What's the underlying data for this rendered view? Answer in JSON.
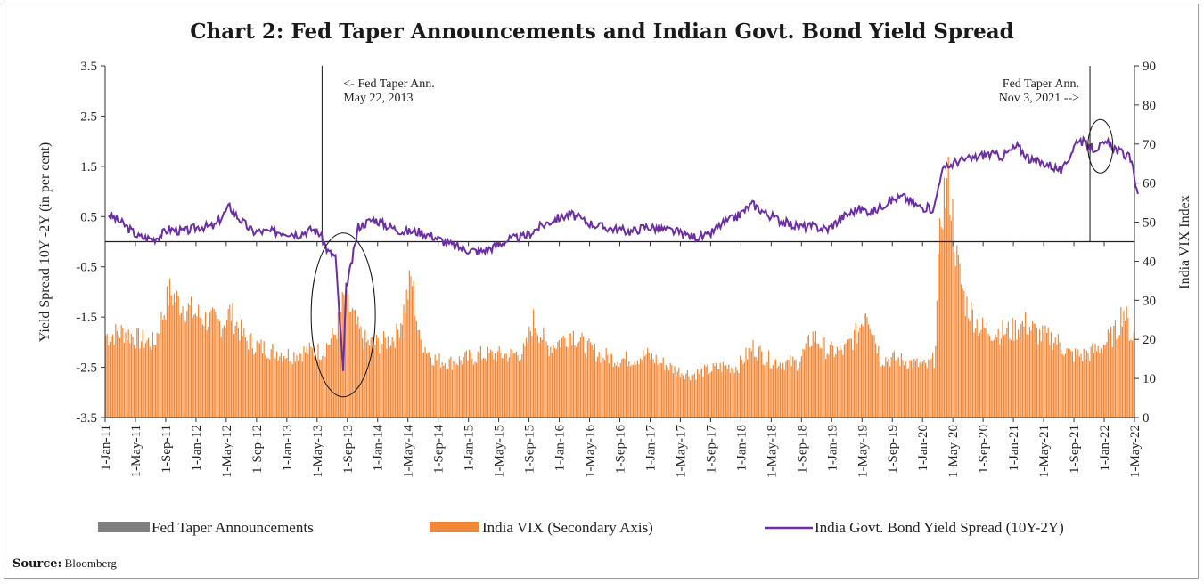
{
  "title": "Chart 2: Fed Taper Announcements and Indian Govt. Bond Yield Spread",
  "source_label": "Source:",
  "source_value": "Bloomberg",
  "colors": {
    "vix": "#f0883a",
    "spread": "#6b2fa0",
    "taper": "#7f7f7f"
  },
  "chart_data": {
    "type": "bar+line",
    "ylabel": "Yield Spread 10Y -2Y (in per cent)",
    "y2label": "India VIX Index",
    "ylim": [
      -3.5,
      3.5
    ],
    "y2lim": [
      0,
      90
    ],
    "yticks": [
      "3.5",
      "2.5",
      "1.5",
      "0.5",
      "-0.5",
      "-1.5",
      "-2.5",
      "-3.5"
    ],
    "y2ticks": [
      "90",
      "80",
      "70",
      "60",
      "50",
      "40",
      "30",
      "20",
      "10",
      "0"
    ],
    "x_tick_labels": [
      "1-Jan-11",
      "1-May-11",
      "1-Sep-11",
      "1-Jan-12",
      "1-May-12",
      "1-Sep-12",
      "1-Jan-13",
      "1-May-13",
      "1-Sep-13",
      "1-Jan-14",
      "1-May-14",
      "1-Sep-14",
      "1-Jan-15",
      "1-May-15",
      "1-Sep-15",
      "1-Jan-16",
      "1-May-16",
      "1-Sep-16",
      "1-Jan-17",
      "1-May-17",
      "1-Sep-17",
      "1-Jan-18",
      "1-May-18",
      "1-Sep-18",
      "1-Jan-19",
      "1-May-19",
      "1-Sep-19",
      "1-Jan-20",
      "1-May-20",
      "1-Sep-20",
      "1-Jan-21",
      "1-May-21",
      "1-Sep-21",
      "1-Jan-22",
      "1-May-22"
    ],
    "series": [
      {
        "name": "Fed Taper Announcements",
        "type": "bar",
        "dates": [
          "2013-05-22",
          "2021-11-03"
        ]
      },
      {
        "name": "India VIX (Secondary Axis)",
        "type": "bar",
        "axis": "secondary",
        "x": [
          "2011-01",
          "2011-03",
          "2011-05",
          "2011-07",
          "2011-09",
          "2011-10",
          "2011-12",
          "2012-02",
          "2012-04",
          "2012-05",
          "2012-07",
          "2012-09",
          "2012-11",
          "2013-01",
          "2013-03",
          "2013-05",
          "2013-06",
          "2013-07",
          "2013-08",
          "2013-09",
          "2013-10",
          "2013-11",
          "2014-01",
          "2014-03",
          "2014-04",
          "2014-05",
          "2014-06",
          "2014-08",
          "2014-10",
          "2014-12",
          "2015-02",
          "2015-04",
          "2015-06",
          "2015-08",
          "2015-09",
          "2015-11",
          "2016-01",
          "2016-02",
          "2016-04",
          "2016-06",
          "2016-08",
          "2016-10",
          "2016-12",
          "2017-02",
          "2017-04",
          "2017-06",
          "2017-08",
          "2017-10",
          "2017-12",
          "2018-02",
          "2018-04",
          "2018-06",
          "2018-08",
          "2018-10",
          "2018-12",
          "2019-02",
          "2019-04",
          "2019-05",
          "2019-07",
          "2019-09",
          "2019-11",
          "2020-01",
          "2020-02",
          "2020-03",
          "2020-04",
          "2020-05",
          "2020-06",
          "2020-08",
          "2020-10",
          "2020-12",
          "2021-02",
          "2021-04",
          "2021-06",
          "2021-08",
          "2021-10",
          "2021-12",
          "2022-02",
          "2022-03",
          "2022-04",
          "2022-05"
        ],
        "values": [
          21,
          22,
          20,
          19,
          32,
          30,
          27,
          25,
          24,
          27,
          20,
          18,
          17,
          16,
          17,
          17,
          19,
          22,
          30,
          27,
          22,
          19,
          19,
          21,
          28,
          36,
          20,
          15,
          14,
          15,
          16,
          16,
          16,
          17,
          25,
          18,
          20,
          22,
          18,
          16,
          15,
          15,
          16,
          14,
          12,
          11,
          12,
          13,
          13,
          18,
          15,
          14,
          14,
          21,
          17,
          17,
          22,
          29,
          15,
          15,
          14,
          13,
          15,
          55,
          60,
          40,
          30,
          23,
          22,
          22,
          24,
          21,
          20,
          16,
          16,
          18,
          22,
          28,
          21,
          21
        ]
      },
      {
        "name": "India Govt. Bond Yield Spread (10Y-2Y)",
        "type": "line",
        "axis": "primary",
        "x": [
          "2011-01",
          "2011-03",
          "2011-05",
          "2011-07",
          "2011-09",
          "2011-11",
          "2012-01",
          "2012-03",
          "2012-05",
          "2012-06",
          "2012-08",
          "2012-10",
          "2012-12",
          "2013-02",
          "2013-04",
          "2013-05",
          "2013-06",
          "2013-07",
          "2013-07b",
          "2013-08",
          "2013-08b",
          "2013-09",
          "2013-10",
          "2013-12",
          "2014-02",
          "2014-04",
          "2014-06",
          "2014-08",
          "2014-10",
          "2014-12",
          "2015-02",
          "2015-04",
          "2015-06",
          "2015-08",
          "2015-10",
          "2015-12",
          "2016-02",
          "2016-04",
          "2016-06",
          "2016-08",
          "2016-10",
          "2016-12",
          "2017-02",
          "2017-04",
          "2017-06",
          "2017-08",
          "2017-10",
          "2017-12",
          "2018-02",
          "2018-04",
          "2018-06",
          "2018-08",
          "2018-10",
          "2018-12",
          "2019-02",
          "2019-04",
          "2019-06",
          "2019-08",
          "2019-10",
          "2019-12",
          "2020-02",
          "2020-03",
          "2020-05",
          "2020-07",
          "2020-09",
          "2020-11",
          "2021-01",
          "2021-03",
          "2021-05",
          "2021-07",
          "2021-09",
          "2021-11",
          "2022-01",
          "2022-03",
          "2022-04",
          "2022-05"
        ],
        "values": [
          0.55,
          0.35,
          0.1,
          0.05,
          0.25,
          0.2,
          0.3,
          0.3,
          0.7,
          0.5,
          0.2,
          0.2,
          0.2,
          0.15,
          0.25,
          0.15,
          -0.2,
          -0.3,
          -1.2,
          -2.6,
          -0.9,
          -0.5,
          0.3,
          0.45,
          0.3,
          0.2,
          0.2,
          0.1,
          -0.05,
          -0.15,
          -0.2,
          -0.1,
          0.05,
          0.1,
          0.3,
          0.45,
          0.55,
          0.4,
          0.3,
          0.25,
          0.2,
          0.3,
          0.25,
          0.2,
          0.1,
          0.1,
          0.35,
          0.5,
          0.75,
          0.55,
          0.4,
          0.3,
          0.3,
          0.25,
          0.5,
          0.65,
          0.6,
          0.8,
          0.9,
          0.7,
          0.65,
          1.4,
          1.6,
          1.65,
          1.75,
          1.7,
          1.9,
          1.6,
          1.55,
          1.4,
          2.05,
          1.85,
          1.95,
          1.75,
          1.65,
          0.95
        ]
      }
    ],
    "annotations": [
      {
        "lines": [
          "<- Fed Taper Ann.",
          "May 22, 2013"
        ]
      },
      {
        "lines": [
          "Fed Taper Ann.",
          "Nov 3, 2021 -->"
        ]
      }
    ],
    "legend": [
      "Fed Taper Announcements",
      "India VIX (Secondary Axis)",
      "India Govt. Bond Yield Spread (10Y-2Y)"
    ],
    "legend_position": "bottom",
    "grid": false
  }
}
